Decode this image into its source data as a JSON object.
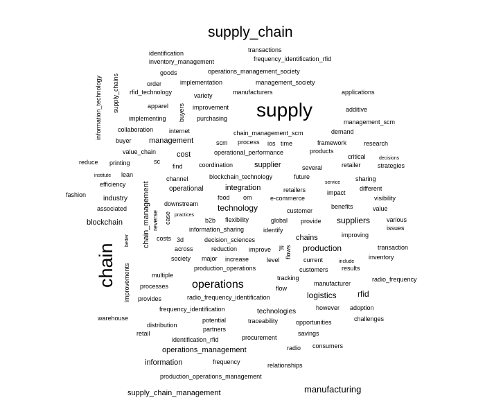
{
  "word_cloud": {
    "text_color": "#000000",
    "background": "#ffffff",
    "words": [
      "supply_chain",
      "transactions",
      "identification",
      "frequency_identification_rfid",
      "inventory_management",
      "operations_management_society",
      "goods",
      "implementation",
      "management_society",
      "order",
      "rfid_technology",
      "manufacturers",
      "applications",
      "information_technology",
      "supply_chains",
      "variety",
      "apparel",
      "improvement",
      "supply",
      "buyers",
      "additive",
      "implementing",
      "purchasing",
      "management_scm",
      "collaboration",
      "internet",
      "chain_management_scm",
      "demand",
      "buyer",
      "management",
      "scm",
      "process",
      "ios",
      "time",
      "framework",
      "research",
      "value_chain",
      "operational_performance",
      "products",
      "cost",
      "critical",
      "decisions",
      "reduce",
      "printing",
      "sc",
      "find",
      "coordination",
      "supplier",
      "retailer",
      "strategies",
      "several",
      "institute",
      "lean",
      "future",
      "channel",
      "blockchain_technology",
      "sharing",
      "service",
      "efficiency",
      "chain_management",
      "operational",
      "integration",
      "retailers",
      "different",
      "fashion",
      "industry",
      "food",
      "om",
      "e-commerce",
      "impact",
      "visibility",
      "downstream",
      "associated",
      "reverse",
      "technology",
      "benefits",
      "value",
      "customer",
      "practices",
      "case",
      "blockchain",
      "flexibility",
      "b2b",
      "global",
      "provide",
      "suppliers",
      "various",
      "information_sharing",
      "identify",
      "issues",
      "better",
      "costs",
      "3d",
      "decision_sciences",
      "chains",
      "improving",
      "chain",
      "across",
      "reduction",
      "improve",
      "jit",
      "production",
      "transaction",
      "society",
      "major",
      "increase",
      "level",
      "flows",
      "current",
      "include",
      "inventory",
      "improvements",
      "production_operations",
      "customers",
      "results",
      "multiple",
      "tracking",
      "radio_frequency",
      "operations",
      "processes",
      "manufacturer",
      "flow",
      "logistics",
      "rfid",
      "provides",
      "radio_frequency_identification",
      "frequency_identification",
      "technologies",
      "however",
      "adoption",
      "warehouse",
      "potential",
      "traceability",
      "opportunities",
      "challenges",
      "distribution",
      "partners",
      "retail",
      "savings",
      "identification_rfid",
      "procurement",
      "operations_management",
      "radio",
      "consumers",
      "information",
      "frequency",
      "relationships",
      "production_operations_management",
      "manufacturing",
      "supply_chain_management"
    ]
  }
}
